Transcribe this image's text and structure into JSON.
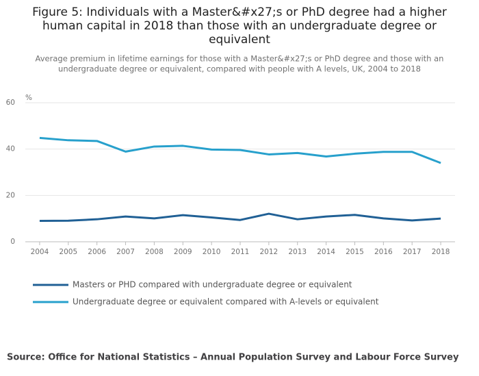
{
  "chart_data": {
    "type": "line",
    "title": [
      "Figure 5: Individuals with a Master&#x27;s or PhD degree had a higher",
      "human capital in 2018 than those with an undergraduate degree or",
      "equivalent"
    ],
    "subtitle": [
      "Average premium in lifetime earnings for those with a Master&#x27;s or PhD degree and those with an",
      "undergraduate degree or equivalent, compared with people with A levels, UK, 2004 to 2018"
    ],
    "y_label": "%",
    "categories": [
      "2004",
      "2005",
      "2006",
      "2007",
      "2008",
      "2009",
      "2010",
      "2011",
      "2012",
      "2013",
      "2014",
      "2015",
      "2016",
      "2017",
      "2018"
    ],
    "series": [
      {
        "name": "Masters or PHD compared with undergraduate degree or equivalent",
        "color": "#206095",
        "values": [
          9.0,
          9.1,
          9.7,
          10.9,
          10.1,
          11.5,
          10.5,
          9.4,
          12.1,
          9.7,
          10.9,
          11.6,
          10.1,
          9.2,
          10.0
        ]
      },
      {
        "name": "Undergraduate degree or equivalent compared with A-levels or equivalent",
        "color": "#27a0cc",
        "values": [
          44.8,
          43.8,
          43.5,
          38.9,
          41.1,
          41.4,
          39.8,
          39.6,
          37.7,
          38.3,
          36.8,
          38.0,
          38.8,
          38.8,
          34.0
        ]
      }
    ],
    "ylim": [
      0,
      60
    ],
    "yticks": [
      0,
      20,
      40,
      60
    ],
    "grid": true,
    "source": "Source: Office for National Statistics – Annual Population Survey and Labour Force Survey"
  }
}
